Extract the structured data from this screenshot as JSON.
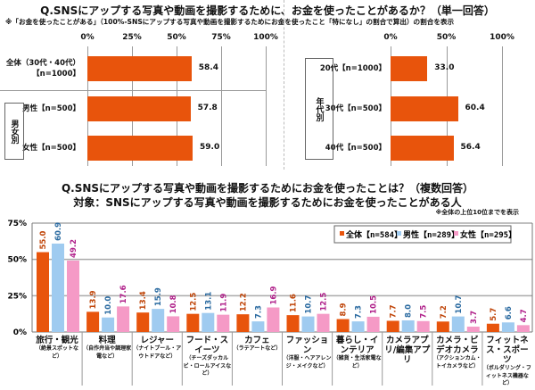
{
  "top": {
    "title": "Q.SNSにアップする写真や動画を撮影するために、お金を使ったことがあるか？（単一回答）",
    "note": "※「お金を使ったことがある」（100%-SNSにアップする写真や動画を撮影するためにお金を使ったこと「特になし」の割合で算出）の割合を表示"
  },
  "bottom": {
    "title": "Q.SNSにアップする写真や動画を撮影するためにお金を使ったことは？（複数回答）",
    "subtitle": "対象：SNSにアップする写真や動画を撮影するためにお金を使ったことがある人",
    "note": "※全体の上位10位までを表示"
  },
  "chart_data": [
    {
      "type": "bar",
      "orientation": "horizontal",
      "xlim": [
        0,
        100
      ],
      "ticks": [
        "0%",
        "25%",
        "50%",
        "75%",
        "100%"
      ],
      "categories": [
        "全体（30代・40代）【n=1000】",
        "男性【n=500】",
        "女性【n=500】"
      ],
      "group_label": "男女別",
      "values": [
        58.4,
        57.8,
        59.0
      ],
      "labels": [
        "58.4",
        "57.8",
        "59.0"
      ],
      "color": "#e8540c"
    },
    {
      "type": "bar",
      "orientation": "horizontal",
      "xlim": [
        0,
        100
      ],
      "ticks": [
        "0%",
        "50%",
        "100%"
      ],
      "categories": [
        "20代【n=1000】",
        "30代【n=500】",
        "40代【n=500】"
      ],
      "group_label": "年代別",
      "values": [
        33.0,
        60.4,
        56.4
      ],
      "labels": [
        "33.0",
        "60.4",
        "56.4"
      ],
      "color": "#e8540c"
    },
    {
      "type": "bar",
      "orientation": "vertical",
      "ylim": [
        0,
        75
      ],
      "yticks": [
        "0%",
        "25%",
        "50%",
        "75%"
      ],
      "grid": true,
      "legend_position": "top-right",
      "categories": [
        {
          "name": "旅行・観光",
          "sub": "（絶景スポットなど）"
        },
        {
          "name": "料理",
          "sub": "（自作弁当や調理家電など）"
        },
        {
          "name": "レジャー",
          "sub": "（ナイトプール・アウトドアなど）"
        },
        {
          "name": "フード・スイーツ",
          "sub": "（チーズダッカルビ・ロールアイスなど）"
        },
        {
          "name": "カフェ",
          "sub": "（ラテアートなど）"
        },
        {
          "name": "ファッション",
          "sub": "（洋服・ヘアアレンジ・メイクなど）"
        },
        {
          "name": "暮らし・インテリア",
          "sub": "（雑貨・生活家電など）"
        },
        {
          "name": "カメラアプリ/編集アプリ",
          "sub": ""
        },
        {
          "name": "カメラ・ビデオカメラ",
          "sub": "（アクションカム・トイカメラなど）"
        },
        {
          "name": "フィットネス・スポーツ",
          "sub": "（ボルダリング・フィットネス機器など）"
        }
      ],
      "series": [
        {
          "name": "全体【n=584】",
          "color": "#e8540c",
          "label_color": "#c0460a",
          "values": [
            55.0,
            13.9,
            13.4,
            12.5,
            12.2,
            11.6,
            8.9,
            7.7,
            7.2,
            5.7
          ]
        },
        {
          "name": "男性【n=289】",
          "color": "#9fcbf0",
          "label_color": "#2a6aa0",
          "values": [
            60.9,
            10.0,
            15.9,
            13.1,
            7.3,
            10.7,
            7.3,
            8.0,
            10.7,
            6.6
          ]
        },
        {
          "name": "女性【n=295】",
          "color": "#f59ac6",
          "label_color": "#b0208a",
          "values": [
            49.2,
            17.6,
            10.8,
            11.9,
            16.9,
            12.5,
            10.5,
            7.5,
            3.7,
            4.7
          ]
        }
      ]
    }
  ]
}
